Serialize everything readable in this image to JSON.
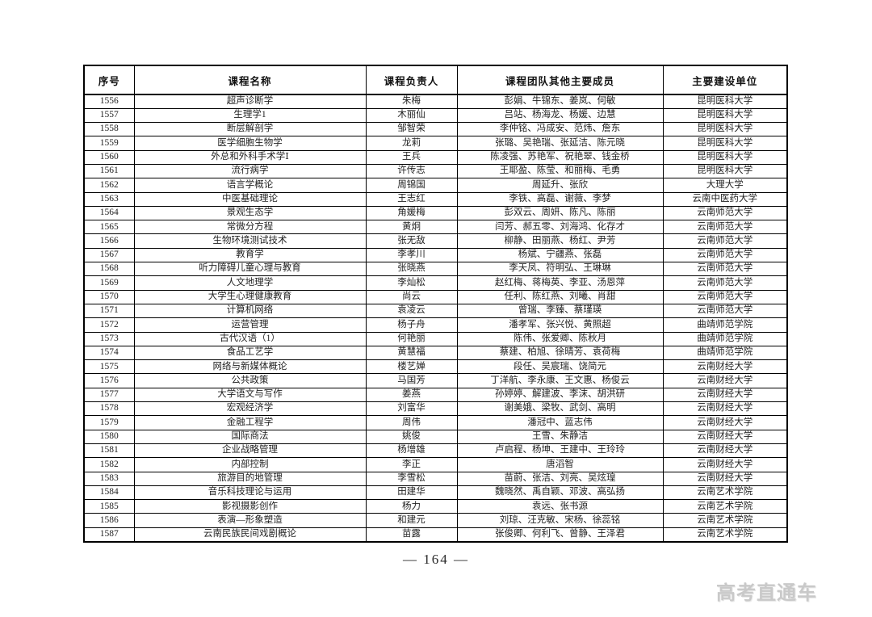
{
  "page": {
    "number_label": "— 164 —",
    "watermark": "高考直通车"
  },
  "colors": {
    "border": "#000000",
    "text": "#222222",
    "watermark": "#c9c9c9",
    "background": "#ffffff"
  },
  "table": {
    "columns": [
      "序号",
      "课程名称",
      "课程负责人",
      "课程团队其他主要成员",
      "主要建设单位"
    ],
    "rows": [
      {
        "no": "1556",
        "course": "超声诊断学",
        "leader": "朱梅",
        "team": "彭娟、牛锦东、姜岚、何敏",
        "unit": "昆明医科大学"
      },
      {
        "no": "1557",
        "course": "生理学1",
        "leader": "木丽仙",
        "team": "吕站、杨海龙、杨媛、边慧",
        "unit": "昆明医科大学"
      },
      {
        "no": "1558",
        "course": "断层解剖学",
        "leader": "邹智荣",
        "team": "李仲铭、冯成安、范炜、詹东",
        "unit": "昆明医科大学"
      },
      {
        "no": "1559",
        "course": "医学细胞生物学",
        "leader": "龙莉",
        "team": "张璐、吴艳瑞、张延洁、陈元晓",
        "unit": "昆明医科大学"
      },
      {
        "no": "1560",
        "course": "外总和外科手术学Ⅰ",
        "leader": "王兵",
        "team": "陈凌强、苏艳军、祝艳翠、钱金桥",
        "unit": "昆明医科大学"
      },
      {
        "no": "1561",
        "course": "流行病学",
        "leader": "许传志",
        "team": "王耶盈、陈莹、和丽梅、毛勇",
        "unit": "昆明医科大学"
      },
      {
        "no": "1562",
        "course": "语言学概论",
        "leader": "周锦国",
        "team": "周延升、张欣",
        "unit": "大理大学"
      },
      {
        "no": "1563",
        "course": "中医基础理论",
        "leader": "王志红",
        "team": "李铁、高磊、谢薇、李梦",
        "unit": "云南中医药大学"
      },
      {
        "no": "1564",
        "course": "景观生态学",
        "leader": "角媛梅",
        "team": "彭双云、周妍、陈凡、陈丽",
        "unit": "云南师范大学"
      },
      {
        "no": "1565",
        "course": "常微分方程",
        "leader": "黄炯",
        "team": "闫芳、郝五零、刘海鸿、化存才",
        "unit": "云南师范大学"
      },
      {
        "no": "1566",
        "course": "生物环境测试技术",
        "leader": "张无敌",
        "team": "柳静、田丽燕、杨红、尹芳",
        "unit": "云南师范大学"
      },
      {
        "no": "1567",
        "course": "教育学",
        "leader": "李孝川",
        "team": "杨斌、宁疆燕、张磊",
        "unit": "云南师范大学"
      },
      {
        "no": "1568",
        "course": "听力障碍儿童心理与教育",
        "leader": "张晓燕",
        "team": "李天凤、符明弘、王琳琳",
        "unit": "云南师范大学"
      },
      {
        "no": "1569",
        "course": "人文地理学",
        "leader": "李灿松",
        "team": "赵红梅、蒋梅英、李亚、汤恩萍",
        "unit": "云南师范大学"
      },
      {
        "no": "1570",
        "course": "大学生心理健康教育",
        "leader": "尚云",
        "team": "任利、陈红燕、刘曦、肖甜",
        "unit": "云南师范大学"
      },
      {
        "no": "1571",
        "course": "计算机网络",
        "leader": "袁凌云",
        "team": "曾瑞、李臻、蔡瑾瑛",
        "unit": "云南师范大学"
      },
      {
        "no": "1572",
        "course": "运营管理",
        "leader": "杨子舟",
        "team": "潘孝军、张兴悦、黄照超",
        "unit": "曲靖师范学院"
      },
      {
        "no": "1573",
        "course": "古代汉语（1）",
        "leader": "何艳丽",
        "team": "陈伟、张爱卿、陈秋月",
        "unit": "曲靖师范学院"
      },
      {
        "no": "1574",
        "course": "食品工艺学",
        "leader": "黄慧福",
        "team": "蔡建、柏旭、徐晴芳、袁荷梅",
        "unit": "曲靖师范学院"
      },
      {
        "no": "1575",
        "course": "网络与新媒体概论",
        "leader": "楼艺婵",
        "team": "段任、吴宸瑞、饶简元",
        "unit": "云南财经大学"
      },
      {
        "no": "1576",
        "course": "公共政策",
        "leader": "马国芳",
        "team": "丁洋航、李永康、王文惠、杨俊云",
        "unit": "云南财经大学"
      },
      {
        "no": "1577",
        "course": "大学语文与写作",
        "leader": "姜燕",
        "team": "孙婷婷、解建波、李沫、胡洪研",
        "unit": "云南财经大学"
      },
      {
        "no": "1578",
        "course": "宏观经济学",
        "leader": "刘富华",
        "team": "谢美娥、梁牧、武剑、高明",
        "unit": "云南财经大学"
      },
      {
        "no": "1579",
        "course": "金融工程学",
        "leader": "周伟",
        "team": "潘冠中、蓝志伟",
        "unit": "云南财经大学"
      },
      {
        "no": "1580",
        "course": "国际商法",
        "leader": "姚俊",
        "team": "王雪、朱静洁",
        "unit": "云南财经大学"
      },
      {
        "no": "1581",
        "course": "企业战略管理",
        "leader": "杨增雄",
        "team": "卢启程、杨坤、王建中、王玲玲",
        "unit": "云南财经大学"
      },
      {
        "no": "1582",
        "course": "内部控制",
        "leader": "李正",
        "team": "唐滔智",
        "unit": "云南财经大学"
      },
      {
        "no": "1583",
        "course": "旅游目的地管理",
        "leader": "李雪松",
        "team": "苗蔚、张洁、刘亮、吴炫瑝",
        "unit": "云南财经大学"
      },
      {
        "no": "1584",
        "course": "音乐科技理论与运用",
        "leader": "田建华",
        "team": "魏晓然、禹自颖、邓波、高弘扬",
        "unit": "云南艺术学院"
      },
      {
        "no": "1585",
        "course": "影视摄影创作",
        "leader": "杨力",
        "team": "袁远、张书源",
        "unit": "云南艺术学院"
      },
      {
        "no": "1586",
        "course": "表演—形象塑造",
        "leader": "和建元",
        "team": "刘琼、汪克敏、宋杨、徐蕊铭",
        "unit": "云南艺术学院"
      },
      {
        "no": "1587",
        "course": "云南民族民间戏剧概论",
        "leader": "苗露",
        "team": "张俊卿、何利飞、曾静、王泽君",
        "unit": "云南艺术学院"
      }
    ]
  }
}
